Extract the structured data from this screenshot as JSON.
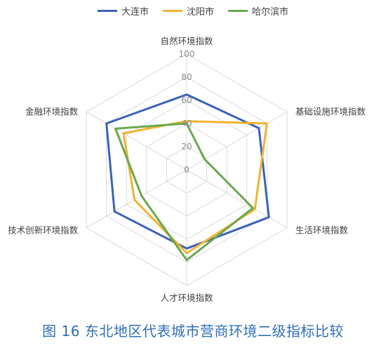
{
  "chart_data": {
    "type": "radar",
    "axes": [
      "自然环境指数",
      "基础设施环境指数",
      "生活环境指数",
      "人才环境指数",
      "技术创新环境指数",
      "金融环境指数"
    ],
    "rlim": [
      0,
      100
    ],
    "ticks": [
      0,
      20,
      40,
      60,
      80,
      100
    ],
    "series": [
      {
        "name": "大连市",
        "color": "#3a63b8",
        "values": [
          65,
          72,
          82,
          68,
          72,
          80
        ]
      },
      {
        "name": "沈阳市",
        "color": "#f2b232",
        "values": [
          42,
          80,
          68,
          72,
          52,
          63
        ]
      },
      {
        "name": "哈尔滨市",
        "color": "#6aa84f",
        "values": [
          40,
          18,
          66,
          78,
          45,
          71
        ]
      }
    ],
    "legend_position": "top",
    "grid": true
  },
  "caption": "图 16 东北地区代表城市营商环境二级指标比较"
}
